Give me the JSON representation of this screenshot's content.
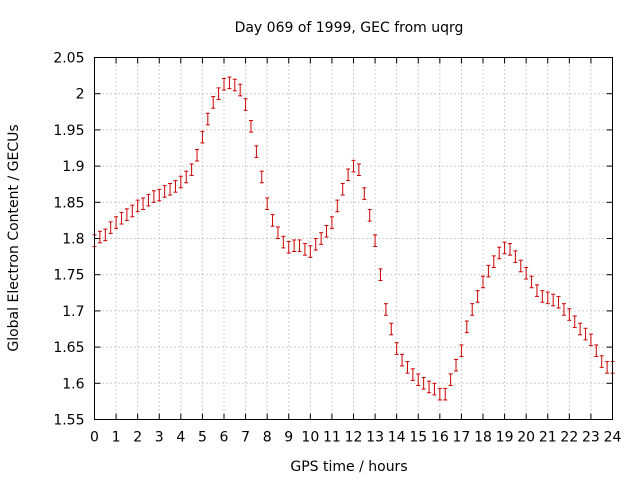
{
  "chart_data": {
    "type": "scatter",
    "title": "Day 069 of 1999, GEC from uqrg",
    "xlabel": "GPS time / hours",
    "ylabel": "Global Electron Content / GECUs",
    "xlim": [
      0,
      24
    ],
    "ylim": [
      1.55,
      2.05
    ],
    "xticks": [
      0,
      1,
      2,
      3,
      4,
      5,
      6,
      7,
      8,
      9,
      10,
      11,
      12,
      13,
      14,
      15,
      16,
      17,
      18,
      19,
      20,
      21,
      22,
      23,
      24
    ],
    "yticks": [
      1.55,
      1.6,
      1.65,
      1.7,
      1.75,
      1.8,
      1.85,
      1.9,
      1.95,
      2.0,
      2.05
    ],
    "ytick_labels": [
      "1.55",
      "1.6",
      "1.65",
      "1.7",
      "1.75",
      "1.8",
      "1.85",
      "1.9",
      "1.95",
      "2",
      "2.05"
    ],
    "grid": true,
    "error_bar": 0.008,
    "series": [
      {
        "name": "GEC",
        "color": "#cc0000",
        "x": [
          0.0,
          0.25,
          0.5,
          0.75,
          1.0,
          1.25,
          1.5,
          1.75,
          2.0,
          2.25,
          2.5,
          2.75,
          3.0,
          3.25,
          3.5,
          3.75,
          4.0,
          4.25,
          4.5,
          4.75,
          5.0,
          5.25,
          5.5,
          5.75,
          6.0,
          6.25,
          6.5,
          6.75,
          7.0,
          7.25,
          7.5,
          7.75,
          8.0,
          8.25,
          8.5,
          8.75,
          9.0,
          9.25,
          9.5,
          9.75,
          10.0,
          10.25,
          10.5,
          10.75,
          11.0,
          11.25,
          11.5,
          11.75,
          12.0,
          12.25,
          12.5,
          12.75,
          13.0,
          13.25,
          13.5,
          13.75,
          14.0,
          14.25,
          14.5,
          14.75,
          15.0,
          15.25,
          15.5,
          15.75,
          16.0,
          16.25,
          16.5,
          16.75,
          17.0,
          17.25,
          17.5,
          17.75,
          18.0,
          18.25,
          18.5,
          18.75,
          19.0,
          19.25,
          19.5,
          19.75,
          20.0,
          20.25,
          20.5,
          20.75,
          21.0,
          21.25,
          21.5,
          21.75,
          22.0,
          22.25,
          22.5,
          22.75,
          23.0,
          23.25,
          23.5,
          23.75,
          24.0
        ],
        "y": [
          1.797,
          1.802,
          1.805,
          1.815,
          1.822,
          1.828,
          1.833,
          1.838,
          1.845,
          1.848,
          1.853,
          1.858,
          1.86,
          1.865,
          1.868,
          1.872,
          1.878,
          1.885,
          1.895,
          1.915,
          1.94,
          1.965,
          1.988,
          2.0,
          2.013,
          2.015,
          2.012,
          2.005,
          1.985,
          1.955,
          1.92,
          1.885,
          1.848,
          1.825,
          1.808,
          1.795,
          1.788,
          1.79,
          1.79,
          1.785,
          1.782,
          1.792,
          1.8,
          1.81,
          1.822,
          1.845,
          1.868,
          1.888,
          1.9,
          1.895,
          1.862,
          1.832,
          1.797,
          1.75,
          1.702,
          1.675,
          1.648,
          1.632,
          1.622,
          1.612,
          1.605,
          1.6,
          1.595,
          1.592,
          1.585,
          1.585,
          1.605,
          1.625,
          1.645,
          1.678,
          1.702,
          1.72,
          1.74,
          1.755,
          1.768,
          1.78,
          1.787,
          1.785,
          1.775,
          1.762,
          1.752,
          1.74,
          1.728,
          1.72,
          1.718,
          1.715,
          1.712,
          1.702,
          1.695,
          1.685,
          1.675,
          1.668,
          1.66,
          1.645,
          1.63,
          1.622,
          1.622
        ]
      }
    ]
  }
}
